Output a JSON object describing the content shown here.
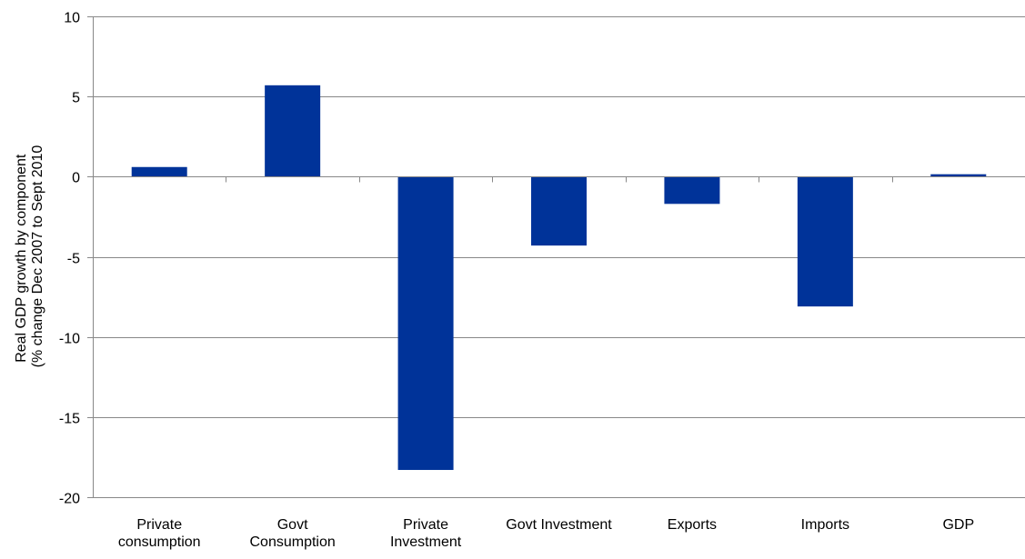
{
  "chart_data": {
    "type": "bar",
    "title": "",
    "xlabel": "",
    "ylabel_lines": [
      "Real GDP growth by component",
      "(% change Dec 2007 to Sept 2010"
    ],
    "categories": [
      [
        "Private",
        "consumption"
      ],
      [
        "Govt",
        "Consumption"
      ],
      [
        "Private",
        "Investment"
      ],
      [
        "Govt Investment"
      ],
      [
        "Exports"
      ],
      [
        "Imports"
      ],
      [
        "GDP"
      ]
    ],
    "series": [
      {
        "values": [
          0.6,
          5.7,
          -18.3,
          -4.3,
          -1.7,
          -8.1,
          0.15
        ]
      }
    ],
    "ylim": [
      -20,
      10
    ],
    "yticks": [
      10,
      5,
      0,
      -5,
      -10,
      -15,
      -20
    ],
    "grid": true,
    "legend": "none",
    "bar_color": "#003399",
    "grid_color": "#888888",
    "axis_color": "#888888"
  }
}
